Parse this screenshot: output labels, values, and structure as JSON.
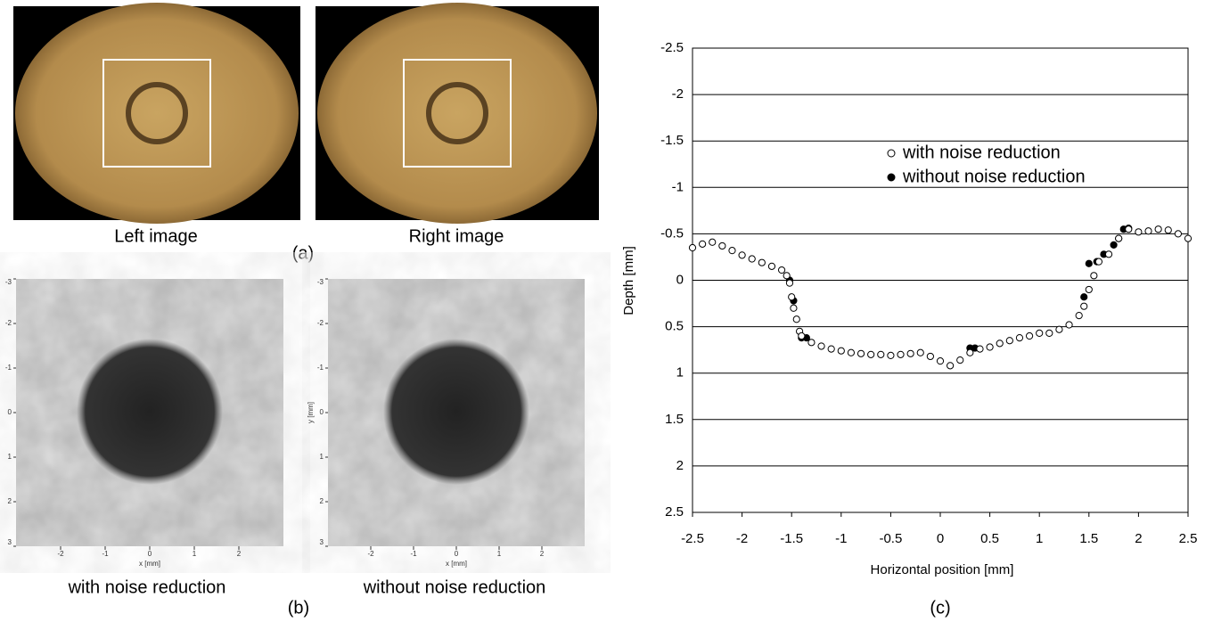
{
  "panel_a": {
    "label": "(a)",
    "captions": [
      "Left image",
      "Right image"
    ]
  },
  "panel_b": {
    "label": "(b)",
    "images": [
      {
        "caption": "with noise reduction",
        "xlabel": "x [mm]",
        "xticks": [
          -2,
          -1,
          0,
          1,
          2
        ],
        "yticks": [
          -3,
          -2,
          -1,
          0,
          1,
          2,
          3
        ]
      },
      {
        "caption": "without noise reduction",
        "xlabel": "x [mm]",
        "ylabel": "y [mm]",
        "xticks": [
          -2,
          -1,
          0,
          1,
          2
        ],
        "yticks": [
          -3,
          -2,
          -1,
          0,
          1,
          2,
          3
        ]
      }
    ]
  },
  "chart_data": {
    "type": "scatter",
    "label": "(c)",
    "xlabel": "Horizontal position [mm]",
    "ylabel": "Depth [mm]",
    "xlim": [
      -2.5,
      2.5
    ],
    "ylim": [
      2.5,
      -2.5
    ],
    "xticks": [
      -2.5,
      -2,
      -1.5,
      -1,
      -0.5,
      0,
      0.5,
      1,
      1.5,
      2,
      2.5
    ],
    "yticks": [
      2.5,
      2,
      1.5,
      1,
      0.5,
      0,
      -0.5,
      -1,
      -1.5,
      -2,
      -2.5
    ],
    "grid": true,
    "series": [
      {
        "name": "with noise reduction",
        "color": "#ffffff",
        "x": [
          -2.5,
          -2.4,
          -2.3,
          -2.2,
          -2.1,
          -2.0,
          -1.9,
          -1.8,
          -1.7,
          -1.6,
          -1.55,
          -1.52,
          -1.5,
          -1.48,
          -1.45,
          -1.42,
          -1.4,
          -1.3,
          -1.2,
          -1.1,
          -1.0,
          -0.9,
          -0.8,
          -0.7,
          -0.6,
          -0.5,
          -0.4,
          -0.3,
          -0.2,
          -0.1,
          0.0,
          0.1,
          0.2,
          0.3,
          0.4,
          0.5,
          0.6,
          0.7,
          0.8,
          0.9,
          1.0,
          1.1,
          1.2,
          1.3,
          1.4,
          1.45,
          1.5,
          1.55,
          1.6,
          1.7,
          1.8,
          1.9,
          2.0,
          2.1,
          2.2,
          2.3,
          2.4,
          2.5
        ],
        "values": [
          -0.35,
          -0.39,
          -0.41,
          -0.37,
          -0.32,
          -0.27,
          -0.23,
          -0.19,
          -0.15,
          -0.11,
          -0.05,
          0.03,
          0.18,
          0.3,
          0.42,
          0.55,
          0.6,
          0.67,
          0.71,
          0.74,
          0.76,
          0.78,
          0.79,
          0.8,
          0.8,
          0.81,
          0.8,
          0.79,
          0.78,
          0.82,
          0.87,
          0.92,
          0.86,
          0.78,
          0.74,
          0.72,
          0.68,
          0.65,
          0.62,
          0.6,
          0.57,
          0.57,
          0.53,
          0.48,
          0.38,
          0.28,
          0.1,
          -0.05,
          -0.2,
          -0.28,
          -0.45,
          -0.55,
          -0.52,
          -0.53,
          -0.55,
          -0.54,
          -0.5,
          -0.45
        ]
      },
      {
        "name": "without noise reduction",
        "color": "#000000",
        "x": [
          -1.52,
          -1.48,
          -1.4,
          -1.35,
          0.3,
          0.35,
          1.45,
          1.5,
          1.58,
          1.65,
          1.75,
          1.8,
          1.85,
          1.9
        ],
        "values": [
          0.0,
          0.22,
          0.62,
          0.62,
          0.73,
          0.73,
          0.18,
          -0.18,
          -0.2,
          -0.28,
          -0.38,
          -0.45,
          -0.55,
          -0.56
        ]
      }
    ]
  }
}
